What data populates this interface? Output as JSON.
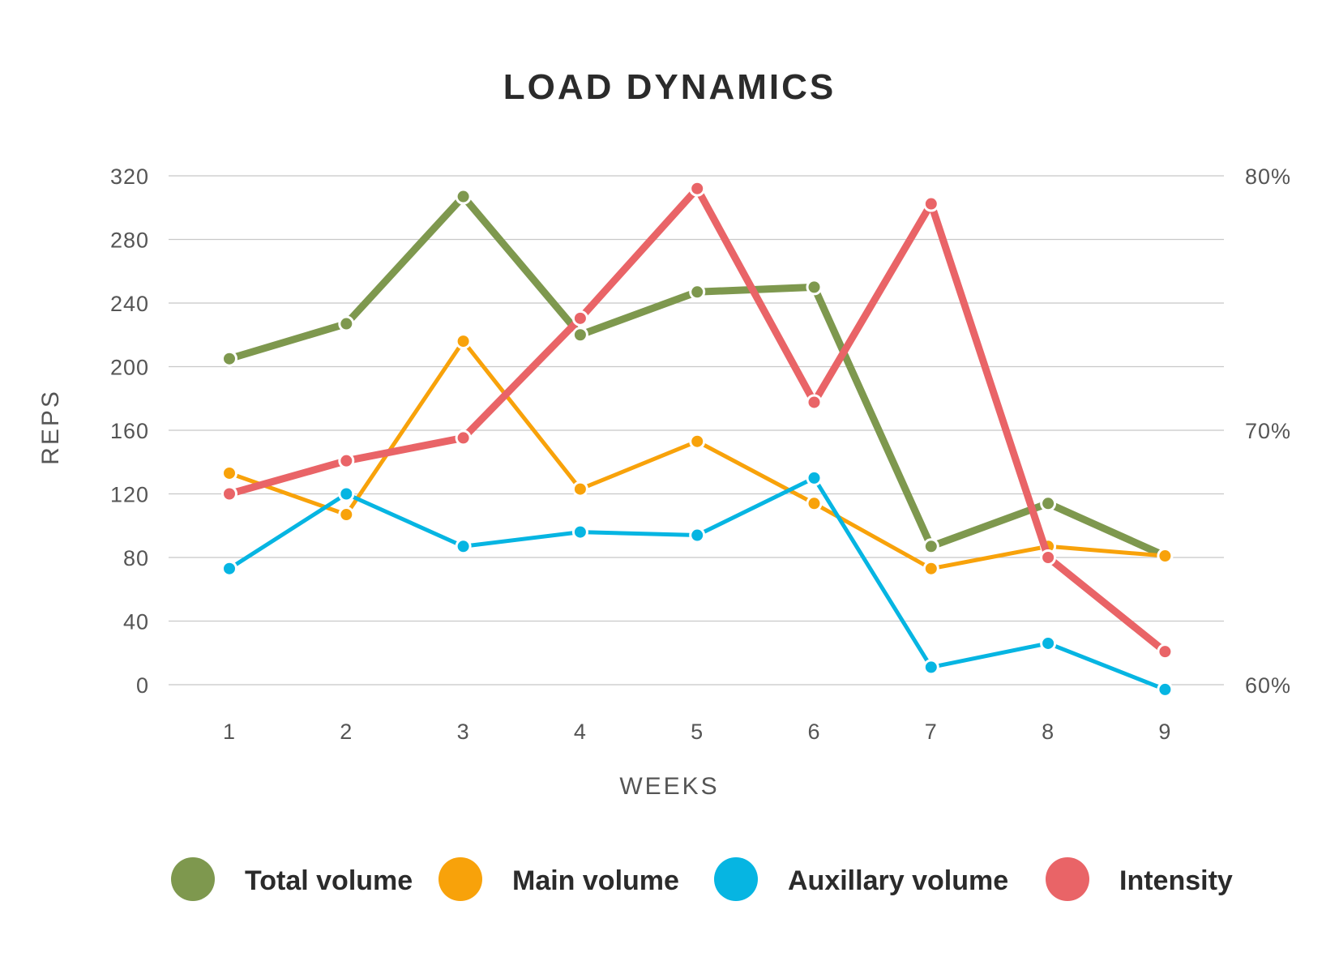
{
  "chart_data": {
    "type": "line",
    "title": "LOAD DYNAMICS",
    "xlabel": "WEEKS",
    "ylabel": "REPS",
    "x": [
      1,
      2,
      3,
      4,
      5,
      6,
      7,
      8,
      9
    ],
    "ylim": [
      0,
      320
    ],
    "yticks": [
      0,
      40,
      80,
      120,
      160,
      200,
      240,
      280,
      320
    ],
    "y2lim": [
      60,
      80
    ],
    "y2ticks": [
      60,
      70,
      80
    ],
    "y2_tick_labels": [
      "60%",
      "70%",
      "80%"
    ],
    "grid": true,
    "legend_position": "bottom",
    "series": [
      {
        "name": "Total volume",
        "axis": "left",
        "color": "#7e984e",
        "values": [
          205,
          227,
          307,
          220,
          247,
          250,
          87,
          114,
          81
        ]
      },
      {
        "name": "Main volume",
        "axis": "left",
        "color": "#f8a20a",
        "values": [
          133,
          107,
          216,
          123,
          153,
          114,
          73,
          87,
          81
        ]
      },
      {
        "name": "Auxillary volume",
        "axis": "left",
        "color": "#06b5e2",
        "values": [
          73,
          120,
          87,
          96,
          94,
          130,
          11,
          26,
          -3
        ]
      },
      {
        "name": "Intensity",
        "axis": "right",
        "color": "#e96467",
        "values": [
          67.5,
          68.8,
          69.7,
          74.4,
          79.5,
          71.1,
          78.9,
          65.0,
          61.3
        ]
      }
    ]
  }
}
